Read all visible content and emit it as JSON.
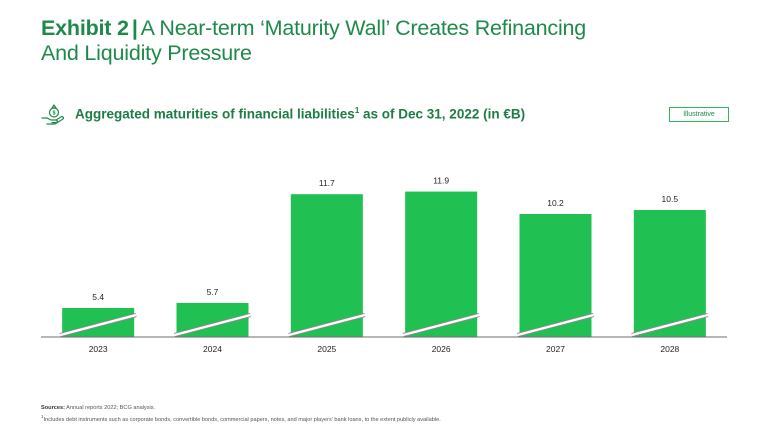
{
  "header": {
    "exhibit": "Exhibit 2",
    "separator": "|",
    "title_line1": "A Near-term ‘Maturity Wall’ Creates Refinancing",
    "title_line2": "And Liquidity Pressure"
  },
  "subtitle": {
    "icon": "hand-money-bag-icon",
    "text_before": "Aggregated maturities of financial liabilities",
    "footnote_mark": "1",
    "text_after": " as of Dec 31, 2022 (in €B)"
  },
  "tag": {
    "label": "Illustrative"
  },
  "colors": {
    "accent": "#1e8a4a",
    "bar": "#21c053",
    "axis": "#6e6e6e"
  },
  "chart_data": {
    "type": "bar",
    "title": "Aggregated maturities of financial liabilities as of Dec 31, 2022 (in €B)",
    "categories": [
      "2023",
      "2024",
      "2025",
      "2026",
      "2027",
      "2028"
    ],
    "values": [
      5.4,
      5.7,
      11.7,
      11.9,
      10.2,
      10.5
    ],
    "value_labels": [
      "5.4",
      "5.7",
      "11.7",
      "11.9",
      "10.2",
      "10.5"
    ],
    "xlabel": "",
    "ylabel": "€B",
    "broken_axis": true,
    "grid": false
  },
  "footer": {
    "sources_label": "Sources:",
    "sources_text": " Annual reports 2022; BCG analysis.",
    "footnote_mark": "1",
    "footnote_text": "Includes debt instruments such as corporate bonds, convertible bonds, commercial papers, notes, and major players’ bank loans, to the extent publicly available."
  }
}
